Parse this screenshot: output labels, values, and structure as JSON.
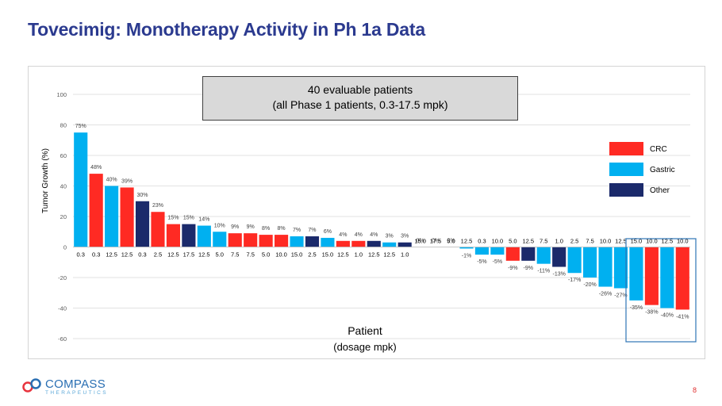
{
  "slide": {
    "title": "Tovecimig: Monotherapy Activity in Ph 1a Data",
    "page_number": "8",
    "logo_name": "COMPASS",
    "logo_sub": "THERAPEUTICS",
    "info_line1": "40 evaluable patients",
    "info_line2": "(all Phase 1 patients, 0.3-17.5 mpk)"
  },
  "colors": {
    "CRC": "#ff2a23",
    "Gastric": "#00b0f0",
    "Other": "#1b2a6b",
    "title": "#2b3a8f",
    "highlight_box": "#2e75b6"
  },
  "chart_data": {
    "type": "bar",
    "title": "",
    "xlabel": "Patient",
    "xlabel_sub": "(dosage mpk)",
    "ylabel": "Tumor Growth (%)",
    "ylim": [
      -60,
      100
    ],
    "yticks": [
      -60,
      -40,
      -20,
      0,
      20,
      40,
      60,
      80,
      100
    ],
    "grid": true,
    "legend": [
      "CRC",
      "Gastric",
      "Other"
    ],
    "legend_position": "right",
    "highlight": "last 4 bars outlined",
    "values": [
      75,
      48,
      40,
      39,
      30,
      23,
      15,
      15,
      14,
      10,
      9,
      9,
      8,
      8,
      7,
      7,
      6,
      4,
      4,
      4,
      3,
      3,
      0,
      0,
      0,
      -1,
      -5,
      -5,
      -9,
      -9,
      -11,
      -13,
      -17,
      -20,
      -26,
      -27,
      -35,
      -38,
      -40,
      -41
    ],
    "value_labels": [
      "75%",
      "48%",
      "40%",
      "39%",
      "30%",
      "23%",
      "15%",
      "15%",
      "14%",
      "10%",
      "9%",
      "9%",
      "8%",
      "8%",
      "7%",
      "7%",
      "6%",
      "4%",
      "4%",
      "4%",
      "3%",
      "3%",
      "0%",
      "0%",
      "0%",
      "-1%",
      "-5%",
      "-5%",
      "-9%",
      "-9%",
      "-11%",
      "-13%",
      "-17%",
      "-20%",
      "-26%",
      "-27%",
      "-35%",
      "-38%",
      "-40%",
      "-41%"
    ],
    "dosages": [
      "0.3",
      "0.3",
      "12.5",
      "12.5",
      "0.3",
      "2.5",
      "12.5",
      "17.5",
      "12.5",
      "5.0",
      "7.5",
      "7.5",
      "5.0",
      "10.0",
      "15.0",
      "2.5",
      "15.0",
      "12.5",
      "1.0",
      "12.5",
      "12.5",
      "1.0",
      "15.0",
      "17.5",
      "5.0",
      "12.5",
      "0.3",
      "10.0",
      "5.0",
      "12.5",
      "7.5",
      "1.0",
      "2.5",
      "7.5",
      "10.0",
      "12.5",
      "15.0",
      "10.0",
      "12.5",
      "10.0"
    ],
    "types": [
      "Gastric",
      "CRC",
      "Gastric",
      "CRC",
      "Other",
      "CRC",
      "CRC",
      "Other",
      "Gastric",
      "Gastric",
      "CRC",
      "CRC",
      "CRC",
      "CRC",
      "Gastric",
      "Other",
      "Gastric",
      "CRC",
      "CRC",
      "Other",
      "Gastric",
      "Other",
      "Gastric",
      "Gastric",
      "Gastric",
      "Gastric",
      "Gastric",
      "Gastric",
      "CRC",
      "Other",
      "Gastric",
      "Other",
      "Gastric",
      "Gastric",
      "Gastric",
      "Gastric",
      "Gastric",
      "CRC",
      "Gastric",
      "CRC"
    ]
  }
}
